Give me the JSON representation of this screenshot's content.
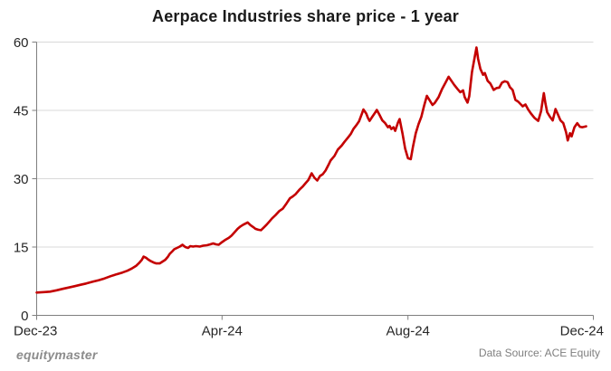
{
  "chart_data": {
    "type": "line",
    "title": "Aerpace Industries share price - 1 year",
    "xlabel": "",
    "ylabel": "",
    "ylim": [
      0,
      60
    ],
    "y_ticks": [
      0,
      15,
      30,
      45,
      60
    ],
    "x_ticks": [
      {
        "label": "Dec-23",
        "pct": 0
      },
      {
        "label": "Apr-24",
        "pct": 33.3
      },
      {
        "label": "Aug-24",
        "pct": 66.7
      },
      {
        "label": "Dec-24",
        "pct": 100
      }
    ],
    "grid": "horizontal",
    "legend": "none",
    "colors": {
      "line": "#c40000",
      "grid": "#d9d9d9",
      "axis": "#7f7f7f"
    },
    "series": [
      {
        "name": "Aerpace Industries share price",
        "points": [
          [
            0.0,
            5.0
          ],
          [
            1.3,
            5.1
          ],
          [
            2.4,
            5.2
          ],
          [
            3.6,
            5.5
          ],
          [
            4.6,
            5.8
          ],
          [
            5.7,
            6.1
          ],
          [
            6.8,
            6.4
          ],
          [
            7.8,
            6.7
          ],
          [
            8.9,
            7.0
          ],
          [
            10.1,
            7.4
          ],
          [
            11.1,
            7.7
          ],
          [
            12.2,
            8.1
          ],
          [
            13.3,
            8.6
          ],
          [
            14.3,
            9.0
          ],
          [
            15.4,
            9.4
          ],
          [
            16.3,
            9.8
          ],
          [
            17.1,
            10.3
          ],
          [
            17.9,
            10.9
          ],
          [
            18.4,
            11.5
          ],
          [
            18.9,
            12.2
          ],
          [
            19.2,
            12.9
          ],
          [
            19.7,
            12.6
          ],
          [
            20.0,
            12.3
          ],
          [
            20.5,
            11.9
          ],
          [
            21.0,
            11.6
          ],
          [
            21.5,
            11.4
          ],
          [
            22.1,
            11.4
          ],
          [
            22.6,
            11.8
          ],
          [
            23.1,
            12.2
          ],
          [
            23.6,
            12.9
          ],
          [
            23.9,
            13.5
          ],
          [
            24.4,
            14.1
          ],
          [
            24.7,
            14.5
          ],
          [
            25.2,
            14.8
          ],
          [
            25.7,
            15.1
          ],
          [
            26.2,
            15.5
          ],
          [
            26.7,
            15.0
          ],
          [
            27.2,
            14.8
          ],
          [
            27.6,
            15.2
          ],
          [
            28.1,
            15.1
          ],
          [
            28.6,
            15.2
          ],
          [
            29.3,
            15.1
          ],
          [
            29.9,
            15.3
          ],
          [
            30.6,
            15.4
          ],
          [
            31.2,
            15.6
          ],
          [
            31.7,
            15.8
          ],
          [
            32.2,
            15.6
          ],
          [
            32.7,
            15.5
          ],
          [
            33.2,
            16.0
          ],
          [
            33.8,
            16.5
          ],
          [
            34.5,
            17.0
          ],
          [
            35.0,
            17.5
          ],
          [
            35.6,
            18.3
          ],
          [
            36.1,
            19.0
          ],
          [
            36.6,
            19.5
          ],
          [
            37.1,
            19.9
          ],
          [
            37.6,
            20.2
          ],
          [
            37.9,
            20.4
          ],
          [
            38.4,
            19.8
          ],
          [
            38.9,
            19.4
          ],
          [
            39.3,
            19.0
          ],
          [
            39.8,
            18.8
          ],
          [
            40.3,
            18.7
          ],
          [
            40.8,
            19.3
          ],
          [
            41.3,
            19.9
          ],
          [
            41.8,
            20.6
          ],
          [
            42.3,
            21.3
          ],
          [
            42.9,
            22.0
          ],
          [
            43.6,
            22.9
          ],
          [
            44.2,
            23.4
          ],
          [
            44.9,
            24.6
          ],
          [
            45.5,
            25.7
          ],
          [
            46.0,
            26.1
          ],
          [
            46.5,
            26.6
          ],
          [
            47.2,
            27.6
          ],
          [
            47.8,
            28.3
          ],
          [
            48.3,
            29.0
          ],
          [
            48.8,
            29.7
          ],
          [
            49.4,
            31.2
          ],
          [
            49.9,
            30.2
          ],
          [
            50.4,
            29.6
          ],
          [
            50.9,
            30.6
          ],
          [
            51.4,
            31.0
          ],
          [
            51.9,
            31.8
          ],
          [
            52.4,
            33.0
          ],
          [
            52.8,
            34.0
          ],
          [
            53.5,
            35.0
          ],
          [
            54.1,
            36.4
          ],
          [
            54.8,
            37.3
          ],
          [
            55.3,
            38.1
          ],
          [
            55.9,
            39.0
          ],
          [
            56.4,
            39.8
          ],
          [
            56.9,
            40.9
          ],
          [
            57.4,
            41.7
          ],
          [
            57.9,
            42.6
          ],
          [
            58.4,
            44.2
          ],
          [
            58.7,
            45.2
          ],
          [
            59.2,
            44.3
          ],
          [
            59.5,
            43.4
          ],
          [
            59.8,
            42.7
          ],
          [
            60.3,
            43.6
          ],
          [
            60.8,
            44.5
          ],
          [
            61.1,
            45.1
          ],
          [
            61.6,
            44.0
          ],
          [
            62.1,
            42.8
          ],
          [
            62.6,
            42.2
          ],
          [
            63.1,
            41.3
          ],
          [
            63.4,
            41.6
          ],
          [
            63.7,
            40.9
          ],
          [
            64.1,
            41.3
          ],
          [
            64.4,
            40.5
          ],
          [
            64.9,
            42.3
          ],
          [
            65.2,
            43.1
          ],
          [
            65.7,
            40.0
          ],
          [
            66.2,
            36.6
          ],
          [
            66.7,
            34.5
          ],
          [
            67.2,
            34.3
          ],
          [
            67.6,
            37.0
          ],
          [
            68.1,
            40.0
          ],
          [
            68.6,
            42.0
          ],
          [
            69.1,
            43.6
          ],
          [
            69.6,
            46.0
          ],
          [
            70.1,
            48.2
          ],
          [
            70.6,
            47.2
          ],
          [
            71.1,
            46.2
          ],
          [
            71.5,
            46.6
          ],
          [
            72.2,
            47.9
          ],
          [
            72.8,
            49.6
          ],
          [
            73.5,
            51.2
          ],
          [
            74.0,
            52.4
          ],
          [
            74.5,
            51.5
          ],
          [
            75.0,
            50.6
          ],
          [
            75.6,
            49.7
          ],
          [
            76.1,
            49.0
          ],
          [
            76.6,
            49.4
          ],
          [
            76.9,
            47.9
          ],
          [
            77.4,
            46.7
          ],
          [
            77.7,
            48.1
          ],
          [
            78.2,
            53.4
          ],
          [
            78.7,
            56.8
          ],
          [
            79.0,
            58.8
          ],
          [
            79.3,
            56.3
          ],
          [
            79.7,
            54.1
          ],
          [
            80.2,
            52.8
          ],
          [
            80.5,
            53.2
          ],
          [
            81.0,
            51.5
          ],
          [
            81.5,
            50.9
          ],
          [
            82.1,
            49.5
          ],
          [
            82.6,
            49.9
          ],
          [
            83.1,
            50.0
          ],
          [
            83.6,
            51.1
          ],
          [
            84.1,
            51.4
          ],
          [
            84.6,
            51.2
          ],
          [
            85.0,
            50.1
          ],
          [
            85.5,
            49.5
          ],
          [
            86.0,
            47.3
          ],
          [
            86.5,
            46.9
          ],
          [
            87.0,
            46.3
          ],
          [
            87.3,
            45.9
          ],
          [
            87.8,
            46.3
          ],
          [
            88.3,
            45.2
          ],
          [
            88.8,
            44.3
          ],
          [
            89.4,
            43.4
          ],
          [
            90.1,
            42.7
          ],
          [
            90.6,
            44.8
          ],
          [
            91.1,
            48.8
          ],
          [
            91.4,
            46.5
          ],
          [
            91.7,
            44.6
          ],
          [
            92.2,
            43.6
          ],
          [
            92.7,
            42.8
          ],
          [
            93.2,
            45.3
          ],
          [
            93.7,
            43.9
          ],
          [
            94.1,
            42.8
          ],
          [
            94.6,
            42.2
          ],
          [
            95.1,
            40.2
          ],
          [
            95.4,
            38.4
          ],
          [
            95.8,
            40.0
          ],
          [
            96.1,
            39.3
          ],
          [
            96.6,
            41.3
          ],
          [
            97.1,
            42.2
          ],
          [
            97.6,
            41.4
          ],
          [
            98.0,
            41.3
          ],
          [
            98.7,
            41.5
          ]
        ]
      }
    ]
  },
  "footer": {
    "brand": "equitymaster",
    "data_source": "Data Source: ACE Equity"
  }
}
